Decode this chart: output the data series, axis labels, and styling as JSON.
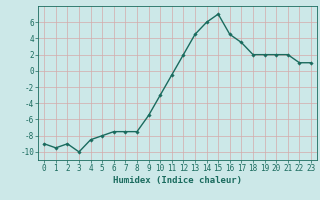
{
  "x": [
    0,
    1,
    2,
    3,
    4,
    5,
    6,
    7,
    8,
    9,
    10,
    11,
    12,
    13,
    14,
    15,
    16,
    17,
    18,
    19,
    20,
    21,
    22,
    23
  ],
  "y": [
    -9,
    -9.5,
    -9,
    -10,
    -8.5,
    -8,
    -7.5,
    -7.5,
    -7.5,
    -5.5,
    -3,
    -0.5,
    2,
    4.5,
    6,
    7,
    4.5,
    3.5,
    2,
    2,
    2,
    2,
    1,
    1
  ],
  "line_color": "#1a6b5e",
  "marker": "D",
  "marker_size": 1.8,
  "bg_color": "#cce8e8",
  "grid_color_minor": "#d4aaaa",
  "grid_color_major": "#d4aaaa",
  "xlabel": "Humidex (Indice chaleur)",
  "ylim": [
    -11,
    8
  ],
  "xlim": [
    -0.5,
    23.5
  ],
  "yticks": [
    -10,
    -8,
    -6,
    -4,
    -2,
    0,
    2,
    4,
    6
  ],
  "xticks": [
    0,
    1,
    2,
    3,
    4,
    5,
    6,
    7,
    8,
    9,
    10,
    11,
    12,
    13,
    14,
    15,
    16,
    17,
    18,
    19,
    20,
    21,
    22,
    23
  ],
  "tick_color": "#1a6b5e",
  "xlabel_fontsize": 6.5,
  "tick_fontsize": 5.5,
  "linewidth": 1.0
}
